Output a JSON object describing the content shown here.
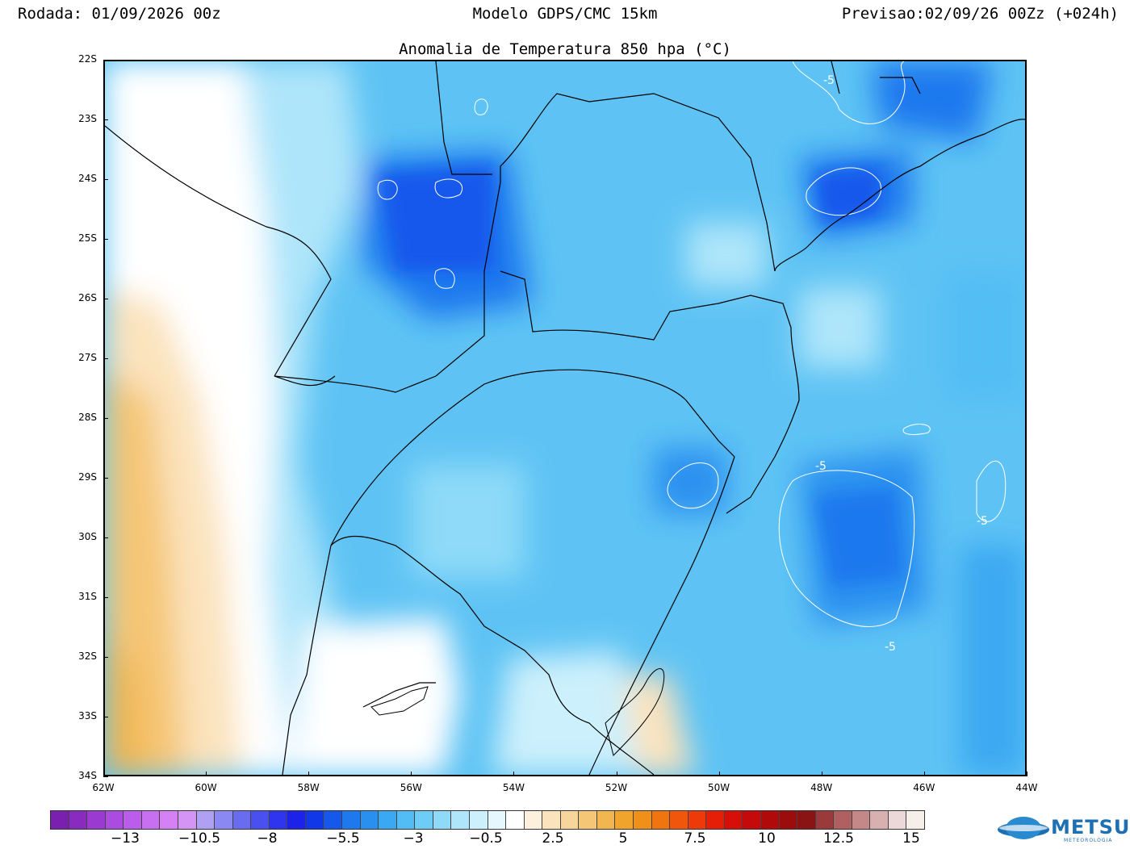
{
  "header": {
    "run": "Rodada: 01/09/2026 00z",
    "model": "Modelo GDPS/CMC 15km",
    "forecast": "Previsao:02/09/26 00Zz (+024h)"
  },
  "map": {
    "title": "Anomalia de Temperatura 850 hpa (°C)",
    "lat_labels": [
      "22S",
      "23S",
      "24S",
      "25S",
      "26S",
      "27S",
      "28S",
      "29S",
      "30S",
      "31S",
      "32S",
      "33S",
      "34S"
    ],
    "lon_labels": [
      "62W",
      "60W",
      "58W",
      "56W",
      "54W",
      "52W",
      "50W",
      "48W",
      "46W",
      "44W"
    ],
    "contour_labels": [
      "-5",
      "-5",
      "-5",
      "-5"
    ]
  },
  "colorbar": {
    "labels": [
      "-13",
      "-10.5",
      "-8",
      "-5.5",
      "-3",
      "-0.5",
      "2.5",
      "5",
      "7.5",
      "10",
      "12.5",
      "15"
    ],
    "colors": [
      "#7a1fb0",
      "#8a2bc0",
      "#9a3ad0",
      "#ab4be0",
      "#bb5cea",
      "#c86ef0",
      "#d680f5",
      "#d494f5",
      "#b0a0f4",
      "#8a88f2",
      "#6a6cf0",
      "#4a4ff0",
      "#2f35ee",
      "#1c22ea",
      "#1038e8",
      "#1558ec",
      "#1e78ee",
      "#2a90f0",
      "#3aa8f2",
      "#52bdf4",
      "#6ecdf6",
      "#8edaf8",
      "#aee5fa",
      "#ccf0fc",
      "#e6f7fd",
      "#ffffff",
      "#fdf0dc",
      "#fbe3bd",
      "#f8d59a",
      "#f5c676",
      "#f2b650",
      "#f0a42c",
      "#f09018",
      "#f07410",
      "#f0560c",
      "#ee3a0a",
      "#e61e08",
      "#d80e08",
      "#c40a0a",
      "#b00a0a",
      "#9c0c0c",
      "#8a1414",
      "#9a3a3a",
      "#b06060",
      "#c48888",
      "#d8b0b0",
      "#ecd8d8",
      "#f6eee8"
    ]
  },
  "logo": {
    "name": "METSUL",
    "subtitle": "METEOROLOGIA"
  }
}
